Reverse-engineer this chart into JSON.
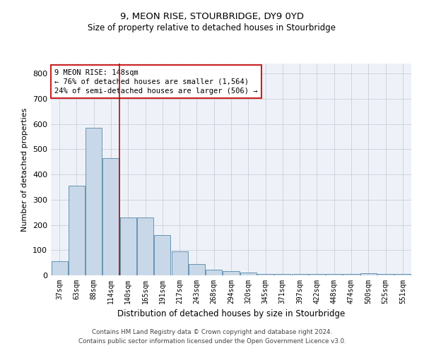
{
  "title1": "9, MEON RISE, STOURBRIDGE, DY9 0YD",
  "title2": "Size of property relative to detached houses in Stourbridge",
  "xlabel": "Distribution of detached houses by size in Stourbridge",
  "ylabel": "Number of detached properties",
  "categories": [
    "37sqm",
    "63sqm",
    "88sqm",
    "114sqm",
    "140sqm",
    "165sqm",
    "191sqm",
    "217sqm",
    "243sqm",
    "268sqm",
    "294sqm",
    "320sqm",
    "345sqm",
    "371sqm",
    "397sqm",
    "422sqm",
    "448sqm",
    "474sqm",
    "500sqm",
    "525sqm",
    "551sqm"
  ],
  "values": [
    55,
    355,
    585,
    465,
    230,
    230,
    160,
    95,
    45,
    22,
    18,
    12,
    5,
    5,
    5,
    5,
    5,
    5,
    8,
    5,
    5
  ],
  "bar_color": "#c8d8e8",
  "bar_edge_color": "#5588aa",
  "vline_x": 3.5,
  "vline_color": "#aa1111",
  "annotation_line1": "9 MEON RISE: 148sqm",
  "annotation_line2": "← 76% of detached houses are smaller (1,564)",
  "annotation_line3": "24% of semi-detached houses are larger (506) →",
  "annotation_box_color": "#ffffff",
  "annotation_box_edge_color": "#cc2222",
  "ylim": [
    0,
    840
  ],
  "yticks": [
    0,
    100,
    200,
    300,
    400,
    500,
    600,
    700,
    800
  ],
  "grid_color": "#ccccdd",
  "footer1": "Contains HM Land Registry data © Crown copyright and database right 2024.",
  "footer2": "Contains public sector information licensed under the Open Government Licence v3.0.",
  "bg_color": "#eef2f8"
}
